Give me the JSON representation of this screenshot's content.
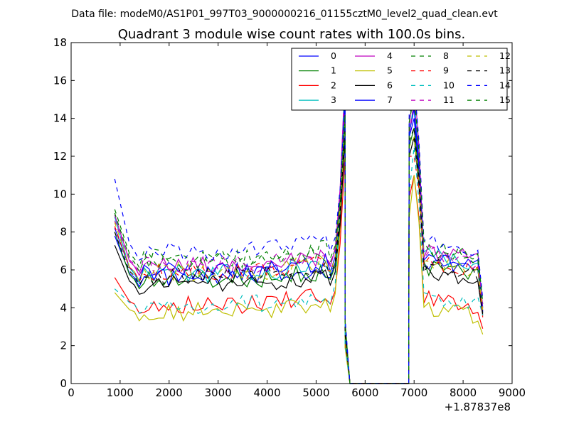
{
  "chart_data": {
    "type": "line",
    "suptitle": "Data file: modeM0/AS1P01_997T03_9000000216_01155cztM0_level2_quad_clean.evt",
    "title": "Quadrant 3 module wise count rates with 100.0s bins.",
    "xlabel": "",
    "ylabel": "",
    "x_offset_label": "+1.87837e8",
    "xlim": [
      0,
      9000
    ],
    "ylim": [
      0,
      18
    ],
    "xticks": [
      0,
      1000,
      2000,
      3000,
      4000,
      5000,
      6000,
      7000,
      8000,
      9000
    ],
    "yticks": [
      0,
      2,
      4,
      6,
      8,
      10,
      12,
      14,
      16,
      18
    ],
    "legend_position": "top-right",
    "legend_columns": 4,
    "bin_seconds": 100.0,
    "segments": [
      {
        "start": 890,
        "end": 5590,
        "step": 100
      },
      {
        "start": 6900,
        "end": 8400,
        "step": 100
      }
    ],
    "gap": {
      "x": [
        5590,
        5690,
        5790,
        6790,
        6890
      ]
    },
    "series": [
      {
        "name": "0",
        "color": "#0000ff",
        "dash": "solid",
        "first": 7.8,
        "base": 5.6,
        "second_first": 13.0,
        "second_base": 6.5,
        "peak1": 14.5,
        "peak2": 14.0,
        "end_value": 3.8
      },
      {
        "name": "1",
        "color": "#008000",
        "dash": "solid",
        "first": 8.0,
        "base": 5.5,
        "second_first": 12.5,
        "second_base": 6.2,
        "peak1": 13.5,
        "peak2": 13.5,
        "end_value": 3.7
      },
      {
        "name": "2",
        "color": "#ff0000",
        "dash": "solid",
        "first": 5.6,
        "base": 4.2,
        "second_first": 9.8,
        "second_base": 4.5,
        "peak1": 12.0,
        "peak2": 11.0,
        "end_value": 2.9
      },
      {
        "name": "3",
        "color": "#00bfbf",
        "dash": "solid",
        "first": 8.8,
        "base": 5.8,
        "second_first": 13.0,
        "second_base": 6.8,
        "peak1": 16.0,
        "peak2": 15.0,
        "end_value": 4.0
      },
      {
        "name": "4",
        "color": "#bf00bf",
        "dash": "solid",
        "first": 8.9,
        "base": 6.2,
        "second_first": 13.5,
        "second_base": 7.0,
        "peak1": 16.2,
        "peak2": 16.0,
        "end_value": 4.0
      },
      {
        "name": "5",
        "color": "#bfbf00",
        "dash": "solid",
        "first": 4.8,
        "base": 3.8,
        "second_first": 8.8,
        "second_base": 4.0,
        "peak1": 14.5,
        "peak2": 11.0,
        "end_value": 2.6
      },
      {
        "name": "6",
        "color": "#000000",
        "dash": "solid",
        "first": 7.3,
        "base": 5.2,
        "second_first": 12.0,
        "second_base": 5.8,
        "peak1": 13.0,
        "peak2": 13.0,
        "end_value": 3.6
      },
      {
        "name": "7",
        "color": "#0000ff",
        "dash": "solid",
        "first": 8.2,
        "base": 5.9,
        "second_first": 13.2,
        "second_base": 6.6,
        "peak1": 15.0,
        "peak2": 14.5,
        "end_value": 3.8
      },
      {
        "name": "8",
        "color": "#008000",
        "dash": "dashed",
        "first": 9.0,
        "base": 6.4,
        "second_first": 14.0,
        "second_base": 7.2,
        "peak1": 14.0,
        "peak2": 15.5,
        "end_value": 4.2
      },
      {
        "name": "9",
        "color": "#ff0000",
        "dash": "dashed",
        "first": 8.3,
        "base": 5.9,
        "second_first": 12.0,
        "second_base": 6.5,
        "peak1": 14.0,
        "peak2": 12.0,
        "end_value": 3.5
      },
      {
        "name": "10",
        "color": "#00bfbf",
        "dash": "dashed",
        "first": 5.0,
        "base": 4.2,
        "second_first": 10.0,
        "second_base": 4.6,
        "peak1": 16.4,
        "peak2": 12.5,
        "end_value": 3.6
      },
      {
        "name": "11",
        "color": "#bf00bf",
        "dash": "dashed",
        "first": 8.6,
        "base": 6.3,
        "second_first": 13.0,
        "second_base": 6.9,
        "peak1": 15.5,
        "peak2": 15.0,
        "end_value": 4.1
      },
      {
        "name": "12",
        "color": "#bfbf00",
        "dash": "dashed",
        "first": 8.5,
        "base": 5.9,
        "second_first": 12.5,
        "second_base": 6.4,
        "peak1": 14.0,
        "peak2": 13.0,
        "end_value": 3.9
      },
      {
        "name": "13",
        "color": "#000000",
        "dash": "dashed",
        "first": 8.0,
        "base": 5.7,
        "second_first": 12.8,
        "second_base": 6.3,
        "peak1": 13.5,
        "peak2": 13.5,
        "end_value": 3.7
      },
      {
        "name": "14",
        "color": "#0000ff",
        "dash": "dashed",
        "first": 10.8,
        "base": 7.0,
        "second_first": 14.5,
        "second_base": 7.6,
        "peak1": 15.0,
        "peak2": 16.0,
        "end_value": 4.5
      },
      {
        "name": "15",
        "color": "#008000",
        "dash": "dashed",
        "first": 9.2,
        "base": 6.6,
        "second_first": 13.8,
        "second_base": 7.1,
        "peak1": 14.2,
        "peak2": 15.2,
        "end_value": 4.3
      }
    ]
  }
}
